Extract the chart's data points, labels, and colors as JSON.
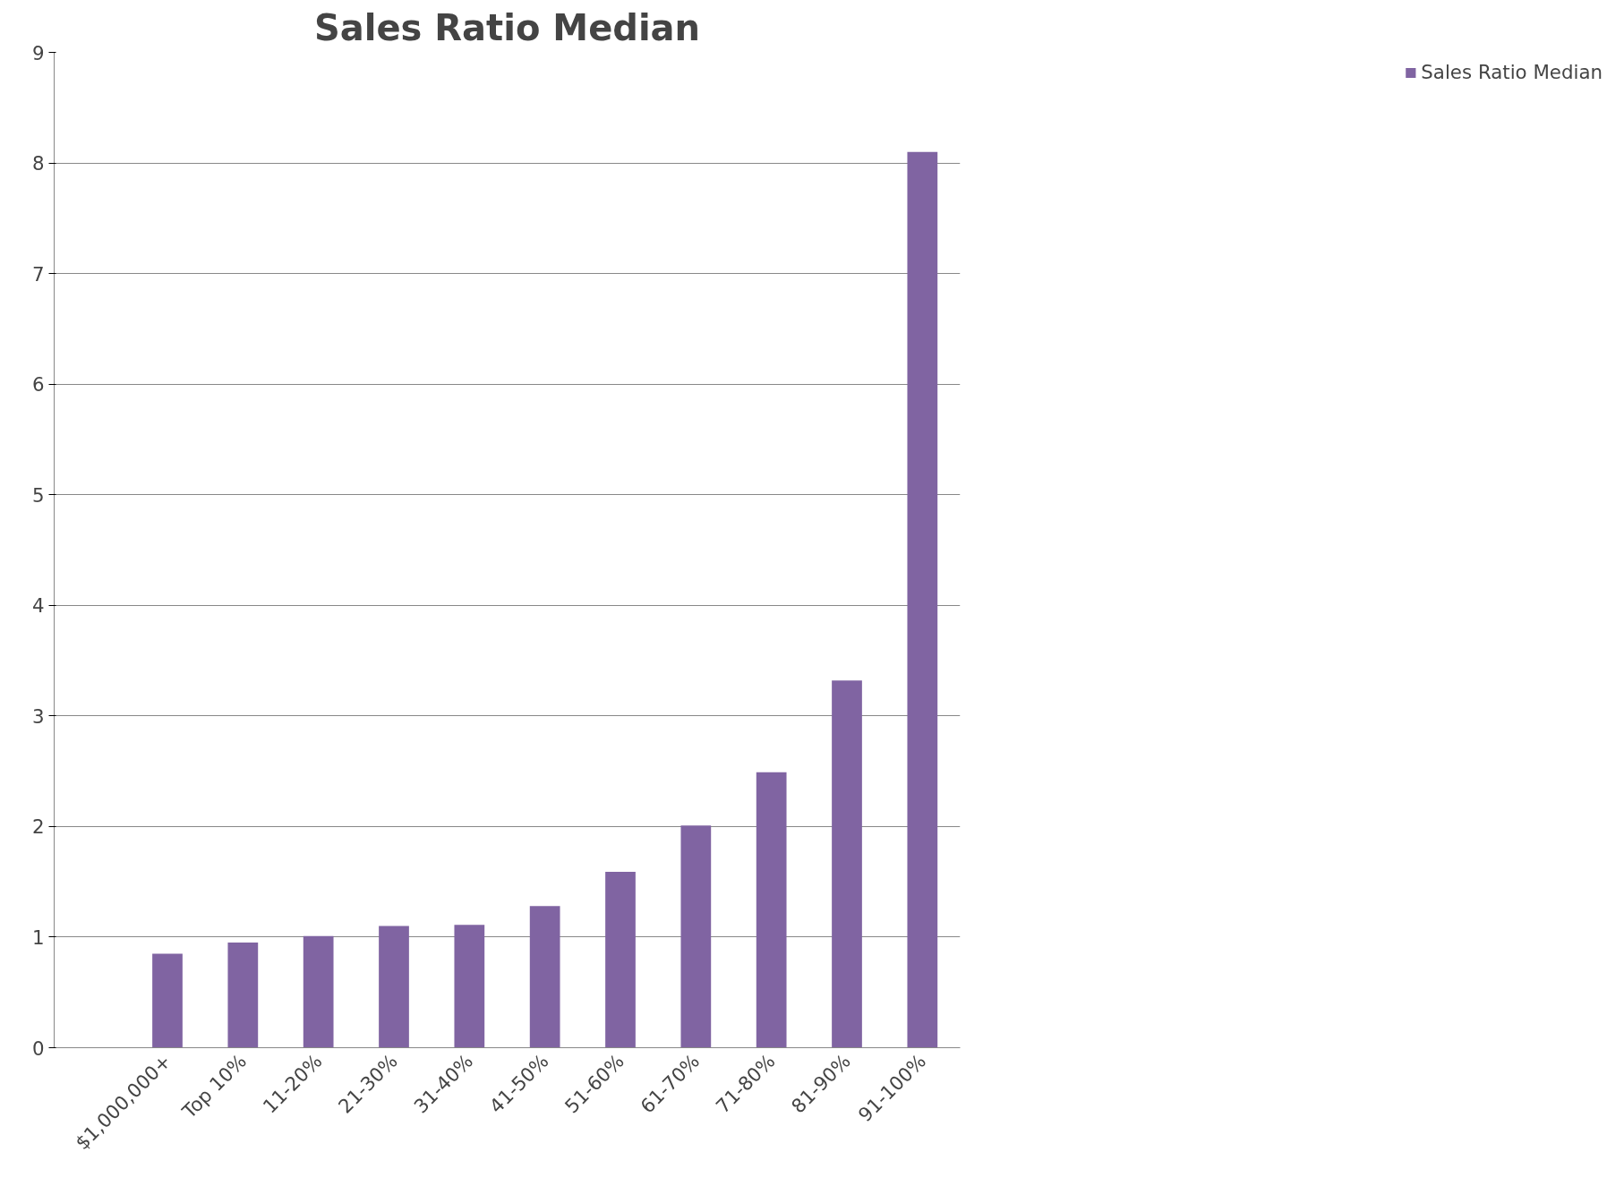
{
  "chart_data": {
    "type": "bar",
    "title": "Sales Ratio Median",
    "categories": [
      null,
      "$1,000,000+",
      "Top 10%",
      "11-20%",
      "21-30%",
      "31-40%",
      "41-50%",
      "51-60%",
      "61-70%",
      "71-80%",
      "81-90%",
      "91-100%"
    ],
    "series": [
      {
        "name": "Sales Ratio Median",
        "color": "#8064a2",
        "values": [
          null,
          0.85,
          0.95,
          1.01,
          1.1,
          1.11,
          1.28,
          1.59,
          2.01,
          2.49,
          3.32,
          8.1
        ]
      }
    ],
    "ylim": [
      0,
      9
    ],
    "yticks": [
      0,
      1,
      2,
      3,
      4,
      5,
      6,
      7,
      8,
      9
    ],
    "grid": "y",
    "legend": "right"
  }
}
